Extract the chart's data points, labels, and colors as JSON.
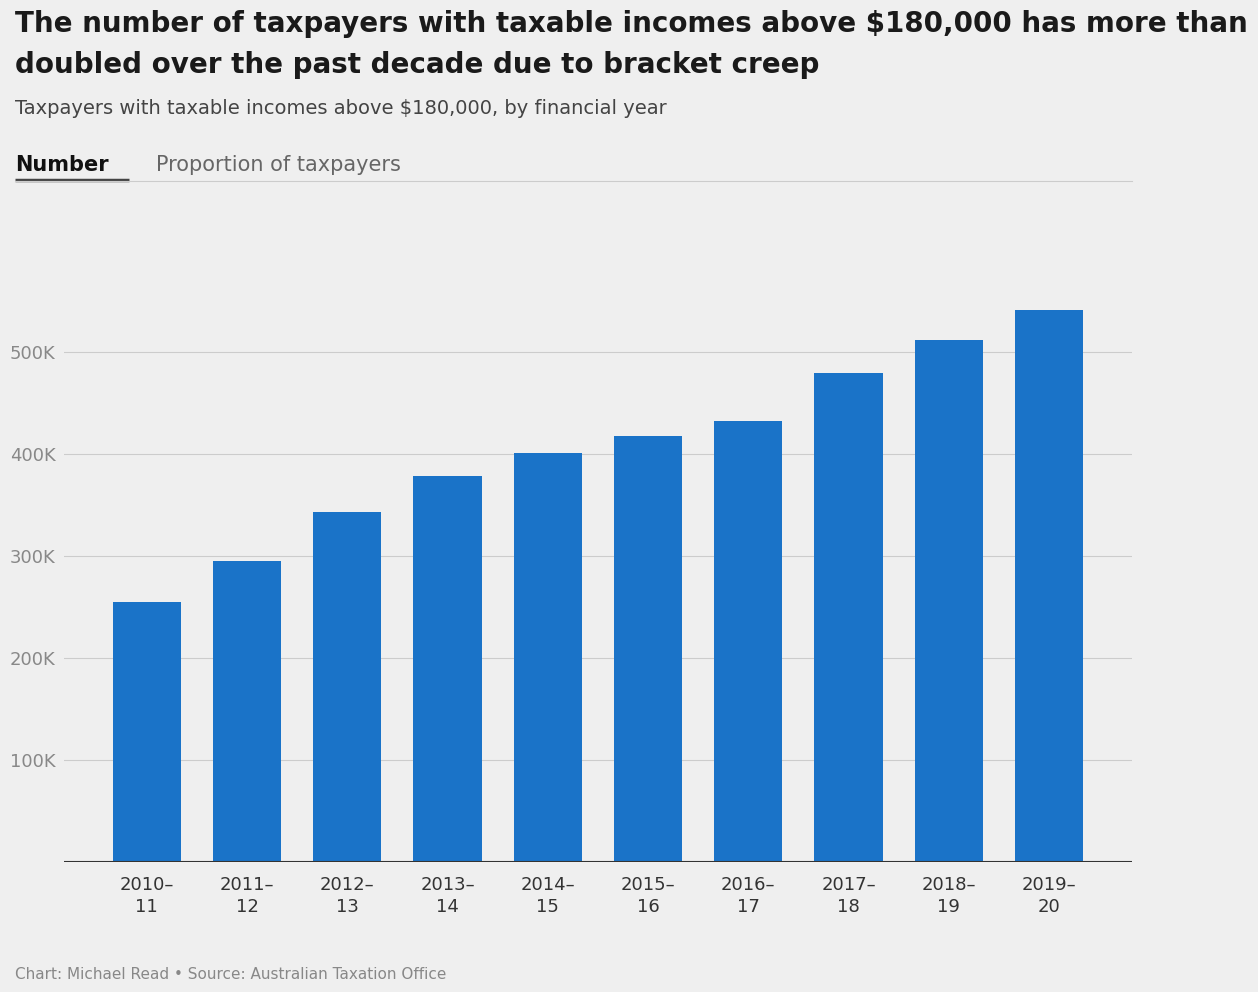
{
  "title_line1": "The number of taxpayers with taxable incomes above $180,000 has more than",
  "title_line2": "doubled over the past decade due to bracket creep",
  "subtitle": "Taxpayers with taxable incomes above $180,000, by financial year",
  "tab1": "Number",
  "tab2": "Proportion of taxpayers",
  "categories": [
    "2010–\n11",
    "2011–\n12",
    "2012–\n13",
    "2013–\n14",
    "2014–\n15",
    "2015–\n16",
    "2016–\n17",
    "2017–\n18",
    "2018–\n19",
    "2019–\n20"
  ],
  "values": [
    255000,
    295000,
    343000,
    378000,
    401000,
    417000,
    432000,
    479000,
    511000,
    541000
  ],
  "bar_color": "#1a73c8",
  "background_color": "#efefef",
  "ytick_labels": [
    "100K",
    "200K",
    "300K",
    "400K",
    "500K"
  ],
  "ytick_values": [
    100000,
    200000,
    300000,
    400000,
    500000
  ],
  "ylim": [
    0,
    570000
  ],
  "footer": "Chart: Michael Read • Source: Australian Taxation Office",
  "title_fontsize": 20,
  "subtitle_fontsize": 14,
  "tab_fontsize": 15,
  "tick_label_fontsize": 13,
  "footer_fontsize": 11,
  "ytick_color": "#888888",
  "xtick_color": "#333333",
  "grid_color": "#cccccc",
  "baseline_color": "#333333",
  "title_color": "#1a1a1a",
  "subtitle_color": "#444444",
  "tab1_color": "#111111",
  "tab2_color": "#666666",
  "footer_color": "#888888",
  "underline_color": "#444444",
  "sep_line_color": "#cccccc"
}
